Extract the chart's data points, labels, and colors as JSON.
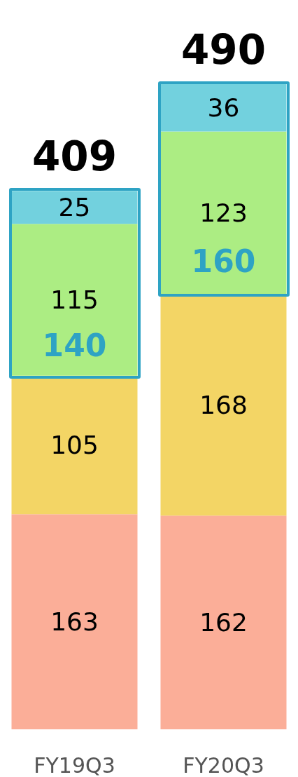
{
  "chart_data": {
    "type": "bar",
    "stacked": true,
    "categories": [
      "FY19Q3",
      "FY20Q3"
    ],
    "series": [
      {
        "color": "#fbae98",
        "values": [
          163,
          162
        ]
      },
      {
        "color": "#f3d565",
        "values": [
          105,
          168
        ]
      },
      {
        "color": "#aced83",
        "values": [
          115,
          123
        ]
      },
      {
        "color": "#72d1de",
        "values": [
          25,
          36
        ]
      }
    ],
    "ylim": [
      0,
      490
    ],
    "tick_labels": "x",
    "data_labels": true,
    "totals": [
      "409",
      "490"
    ],
    "grid": false,
    "annotations": [
      "140",
      "160"
    ]
  }
}
